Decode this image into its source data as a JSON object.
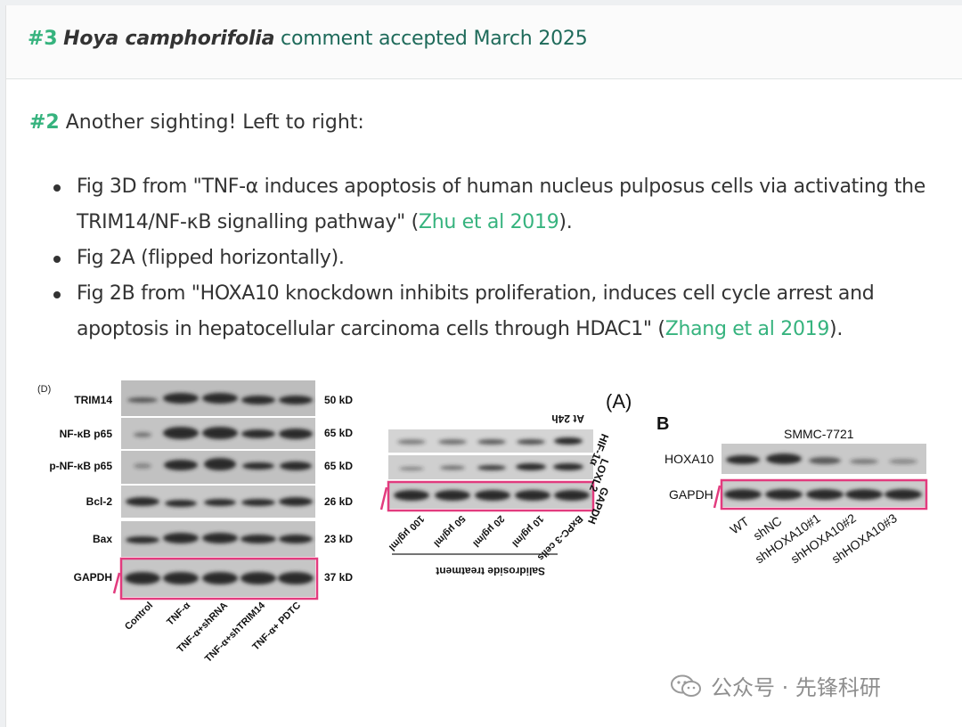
{
  "header": {
    "number": "#3",
    "species": "Hoya camphorifolia",
    "rest": " comment accepted March 2025"
  },
  "comment": {
    "number": "#2",
    "text": " Another sighting! Left to right:",
    "items": [
      {
        "text": "Fig 3D from \"TNF-α induces apoptosis of human nucleus pulposus cells via activating the TRIM14/NF-κB signalling pathway\" (",
        "link": "Zhu et al 2019",
        "after": ")."
      },
      {
        "text": "Fig 2A (flipped horizontally).",
        "link": "",
        "after": ""
      },
      {
        "text": "Fig 2B from \"HOXA10 knockdown inhibits proliferation, induces cell cycle arrest and apoptosis in hepatocellular carcinoma cells through HDAC1\" (",
        "link": "Zhang et al 2019",
        "after": ")."
      }
    ]
  },
  "figD": {
    "panel": "(D)",
    "rows": [
      "TRIM14",
      "NF-κB p65",
      "p-NF-κB p65",
      "Bcl-2",
      "Bax",
      "GAPDH"
    ],
    "sizes": [
      "50 kD",
      "65 kD",
      "65 kD",
      "26 kD",
      "23 kD",
      "37 kD"
    ],
    "lanes": [
      "Control",
      "TNF-α",
      "TNF-α+shRNA",
      "TNF-α+shTRIM14",
      "TNF-α+ PDTC"
    ]
  },
  "figA": {
    "panel": "(A)",
    "time": "At 24h",
    "rows": [
      "HIF-1α",
      "LOXL2",
      "GAPDH"
    ],
    "lanes": [
      "BxPC-3 cells",
      "10 μg/ml",
      "20 μg/ml",
      "50 μg/ml",
      "100 μg/ml"
    ],
    "treatment": "Salidroside treatment"
  },
  "figB": {
    "panel": "B",
    "cell_line": "SMMC-7721",
    "rows": [
      "HOXA10",
      "GAPDH"
    ],
    "lanes": [
      "WT",
      "shNC",
      "shHOXA10#1",
      "shHOXA10#2",
      "shHOXA10#3"
    ]
  },
  "watermark": {
    "text": "公众号 · 先锋科研",
    "icon": "wechat-icon"
  },
  "colors": {
    "accent_green": "#36b37e",
    "header_text": "#1e6a5a",
    "highlight_box": "#e23b7e"
  }
}
